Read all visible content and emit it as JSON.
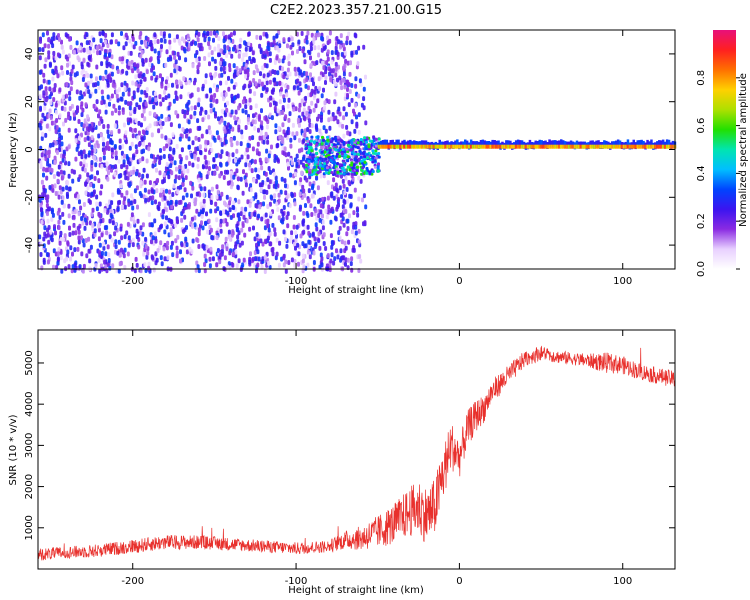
{
  "title": "C2E2.2023.357.21.00.G15",
  "chart_data": [
    {
      "type": "heatmap",
      "xlabel": "Height of straight line (km)",
      "ylabel": "Frequency (Hz)",
      "xlim": [
        -258,
        132
      ],
      "ylim": [
        -50,
        50
      ],
      "xticks": [
        -200,
        -100,
        0,
        100
      ],
      "yticks": [
        -40,
        -20,
        0,
        20,
        40
      ],
      "colorbar": {
        "label": "Normalized spectral amplitude",
        "range": [
          0,
          1
        ],
        "ticks": [
          "0.0",
          "0.2",
          "0.4",
          "0.6",
          "0.8"
        ],
        "colors": [
          "#ffffff",
          "#e8d0ff",
          "#8a2be2",
          "#3b14f0",
          "#0044ff",
          "#00bfff",
          "#00e5b0",
          "#22e000",
          "#aee000",
          "#ffd000",
          "#ff7000",
          "#ff2020",
          "#e8107a"
        ]
      },
      "regions": [
        {
          "name": "broadband noise",
          "x_range": [
            -258,
            -65
          ],
          "freq_range": [
            -50,
            50
          ],
          "level": 0.15
        },
        {
          "name": "signal onset",
          "x_range": [
            -95,
            -50
          ],
          "freq_range": [
            -10,
            6
          ],
          "level": 0.35
        },
        {
          "name": "carrier line",
          "x_range": [
            -50,
            132
          ],
          "freq_range": [
            -2,
            2
          ],
          "level": 0.85
        }
      ]
    },
    {
      "type": "line",
      "xlabel": "Height of straight line (km)",
      "ylabel": "SNR (10 * v/v)",
      "xlim": [
        -258,
        132
      ],
      "ylim": [
        0,
        5800
      ],
      "xticks": [
        -200,
        -100,
        0,
        100
      ],
      "yticks": [
        1000,
        2000,
        3000,
        4000,
        5000
      ],
      "color": "#e8302c",
      "series": [
        {
          "x": [
            -258,
            -240,
            -220,
            -200,
            -180,
            -160,
            -140,
            -120,
            -100,
            -80,
            -70,
            -60,
            -50,
            -40,
            -30,
            -25,
            -20,
            -15,
            -10,
            -5,
            0,
            5,
            10,
            15,
            20,
            30,
            40,
            50,
            60,
            70,
            80,
            90,
            100,
            110,
            120,
            132
          ],
          "y": [
            350,
            400,
            450,
            550,
            650,
            650,
            600,
            550,
            500,
            550,
            700,
            750,
            900,
            1100,
            1400,
            1500,
            1300,
            1500,
            2300,
            3000,
            2700,
            3400,
            3700,
            3900,
            4300,
            4700,
            5100,
            5250,
            5150,
            5100,
            5050,
            5000,
            4950,
            4800,
            4700,
            4600
          ],
          "noise": [
            150,
            150,
            160,
            170,
            180,
            170,
            160,
            150,
            150,
            150,
            220,
            300,
            400,
            500,
            600,
            700,
            700,
            700,
            700,
            600,
            500,
            450,
            400,
            350,
            300,
            250,
            200,
            180,
            160,
            150,
            180,
            250,
            220,
            200,
            200,
            200
          ]
        }
      ]
    }
  ]
}
